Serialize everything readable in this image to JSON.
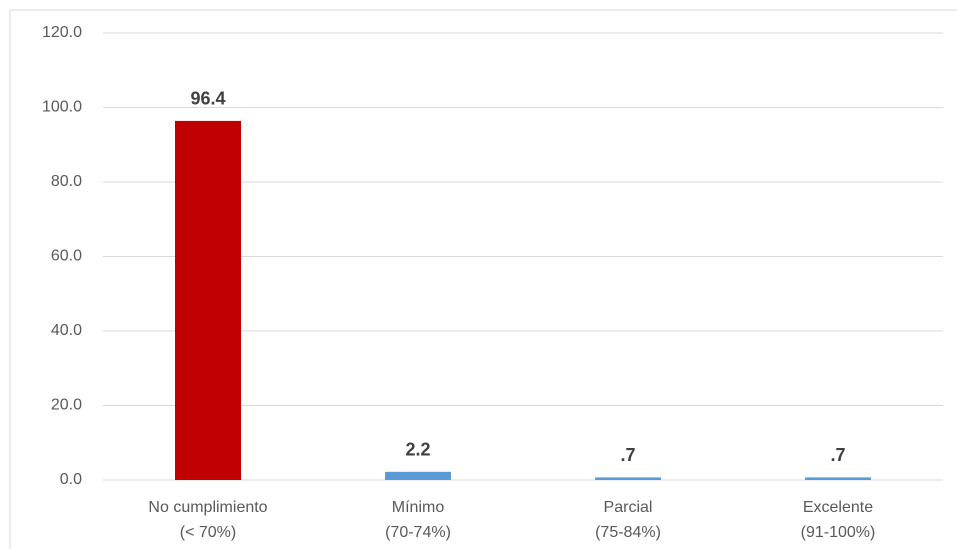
{
  "chart_data": {
    "type": "bar",
    "categories": [
      [
        "No cumplimiento",
        "(< 70%)"
      ],
      [
        "Mínimo",
        "(70-74%)"
      ],
      [
        "Parcial",
        "(75-84%)"
      ],
      [
        "Excelente",
        "(91-100%)"
      ]
    ],
    "values": [
      96.4,
      2.2,
      0.7,
      0.7
    ],
    "value_labels": [
      "96.4",
      "2.2",
      ".7",
      ".7"
    ],
    "colors": [
      "#c00000",
      "#5b9bd5",
      "#5b9bd5",
      "#5b9bd5"
    ],
    "ylim": [
      0,
      120
    ],
    "yticks": [
      {
        "value": 0,
        "label": "0.0"
      },
      {
        "value": 20,
        "label": "20.0"
      },
      {
        "value": 40,
        "label": "40.0"
      },
      {
        "value": 60,
        "label": "60.0"
      },
      {
        "value": 80,
        "label": "80.0"
      },
      {
        "value": 100,
        "label": "100.0"
      },
      {
        "value": 120,
        "label": "120.0"
      }
    ],
    "grid": true
  }
}
